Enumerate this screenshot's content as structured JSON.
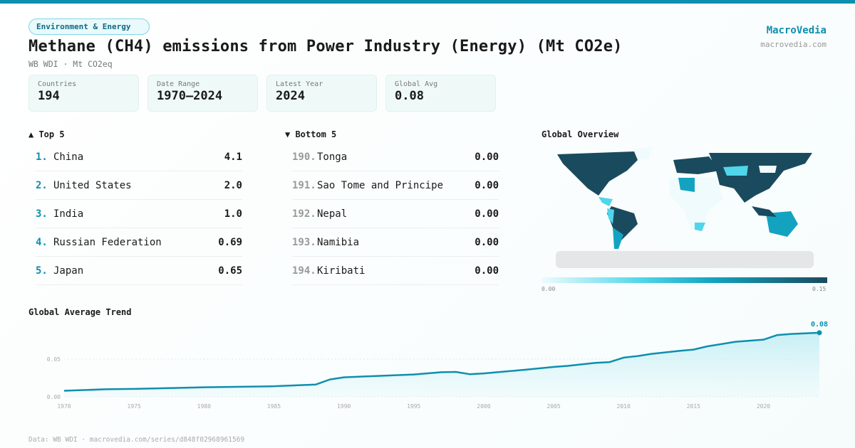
{
  "category": "Environment & Energy",
  "title": "Methane (CH4) emissions from Power Industry (Energy) (Mt CO2e)",
  "subtitle": "WB WDI · Mt CO2eq",
  "brand": {
    "name": "MacroVedia",
    "url": "macrovedia.com"
  },
  "stats": [
    {
      "label": "Countries",
      "value": "194"
    },
    {
      "label": "Date Range",
      "value": "1970–2024"
    },
    {
      "label": "Latest Year",
      "value": "2024"
    },
    {
      "label": "Global Avg",
      "value": "0.08"
    }
  ],
  "top5": {
    "heading": "▲ Top 5",
    "items": [
      {
        "rank": "1.",
        "name": "China",
        "value": "4.1"
      },
      {
        "rank": "2.",
        "name": "United States",
        "value": "2.0"
      },
      {
        "rank": "3.",
        "name": "India",
        "value": "1.0"
      },
      {
        "rank": "4.",
        "name": "Russian Federation",
        "value": "0.69"
      },
      {
        "rank": "5.",
        "name": "Japan",
        "value": "0.65"
      }
    ]
  },
  "bottom5": {
    "heading": "▼ Bottom 5",
    "items": [
      {
        "rank": "190.",
        "name": "Tonga",
        "value": "0.00"
      },
      {
        "rank": "191.",
        "name": "Sao Tome and Principe",
        "value": "0.00"
      },
      {
        "rank": "192.",
        "name": "Nepal",
        "value": "0.00"
      },
      {
        "rank": "193.",
        "name": "Namibia",
        "value": "0.00"
      },
      {
        "rank": "194.",
        "name": "Kiribati",
        "value": "0.00"
      }
    ]
  },
  "map": {
    "heading": "Global Overview",
    "legend_min": "0.00",
    "legend_max": "0.15",
    "colors": [
      "#effbfd",
      "#4fd6ea",
      "#13a3c0",
      "#1a4a5e"
    ]
  },
  "chart_data": {
    "type": "area",
    "title": "Global Average Trend",
    "xlabel": "",
    "ylabel": "",
    "x": [
      1970,
      1973,
      1975,
      1980,
      1985,
      1988,
      1989,
      1990,
      1992,
      1995,
      1997,
      1998,
      1999,
      2000,
      2003,
      2005,
      2006,
      2008,
      2009,
      2010,
      2011,
      2012,
      2014,
      2015,
      2016,
      2018,
      2020,
      2021,
      2022,
      2024
    ],
    "values": [
      0.008,
      0.01,
      0.0105,
      0.0126,
      0.014,
      0.0163,
      0.023,
      0.0258,
      0.0274,
      0.0296,
      0.0327,
      0.033,
      0.03,
      0.031,
      0.036,
      0.0396,
      0.041,
      0.045,
      0.046,
      0.052,
      0.054,
      0.057,
      0.061,
      0.0626,
      0.067,
      0.073,
      0.0758,
      0.082,
      0.0834,
      0.085
    ],
    "xticks": [
      "1970",
      "1975",
      "1980",
      "1985",
      "1990",
      "1995",
      "2000",
      "2005",
      "2010",
      "2015",
      "2020"
    ],
    "yticks": [
      "0.00",
      "0.05"
    ],
    "ylim": [
      0,
      0.09
    ],
    "xlim": [
      1970,
      2024
    ],
    "end_label": "0.08",
    "color": "#0e8fae",
    "grid": true
  },
  "footer": "Data: WB WDI · macrovedia.com/series/d848f02968961569"
}
